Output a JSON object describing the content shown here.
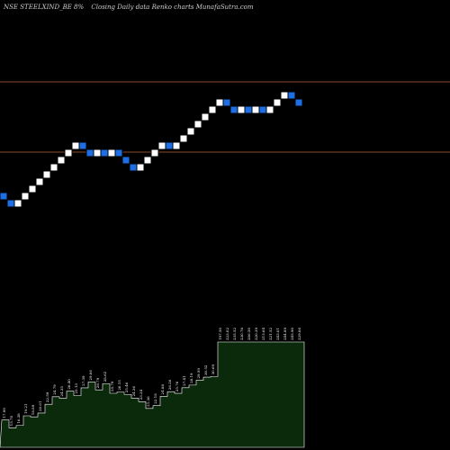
{
  "header": {
    "symbol": "NSE STEELXIND_BE 8%",
    "subtitle": "Closing Daily data  Renko  charts MunafaSutra.com"
  },
  "colors": {
    "background": "#000000",
    "up_brick": "#ffffff",
    "down_brick": "#1e6fe6",
    "brick_border": "#000000",
    "reference_line": "#8a4a2a",
    "volume_fill": "#0b2a0b",
    "volume_stroke": "#ffffff"
  },
  "chart_data": {
    "type": "renko",
    "brick_size_percent": 8,
    "bricks": [
      "down",
      "down",
      "up",
      "up",
      "up",
      "up",
      "up",
      "up",
      "up",
      "up",
      "up",
      "down",
      "down",
      "up",
      "down",
      "up",
      "down",
      "down",
      "down",
      "up",
      "up",
      "up",
      "up",
      "down",
      "up",
      "up",
      "up",
      "up",
      "up",
      "up",
      "up",
      "down",
      "down",
      "up",
      "down",
      "up",
      "down",
      "up",
      "up",
      "up",
      "down",
      "down"
    ],
    "reference_lines": [
      {
        "level": "upper"
      },
      {
        "level": "lower"
      }
    ],
    "volume_labels": [
      "17.99",
      "15.70",
      "16.38",
      "19.21",
      "18.89",
      "20.01",
      "22.59",
      "24.79",
      "24.35",
      "26.40",
      "25.13",
      "27.39",
      "29.06",
      "26.79",
      "28.62",
      "25.79",
      "26.15",
      "25.46",
      "24.36",
      "23.34",
      "21.36",
      "22.18",
      "24.88",
      "26.26",
      "25.76",
      "27.41",
      "28.19",
      "29.59",
      "30.52",
      "30.69",
      "197.50",
      "223.02",
      "235.52",
      "230.76",
      "206.50",
      "220.39",
      "215.64",
      "221.52",
      "243.01",
      "244.89",
      "245.90",
      "229.06"
    ]
  }
}
